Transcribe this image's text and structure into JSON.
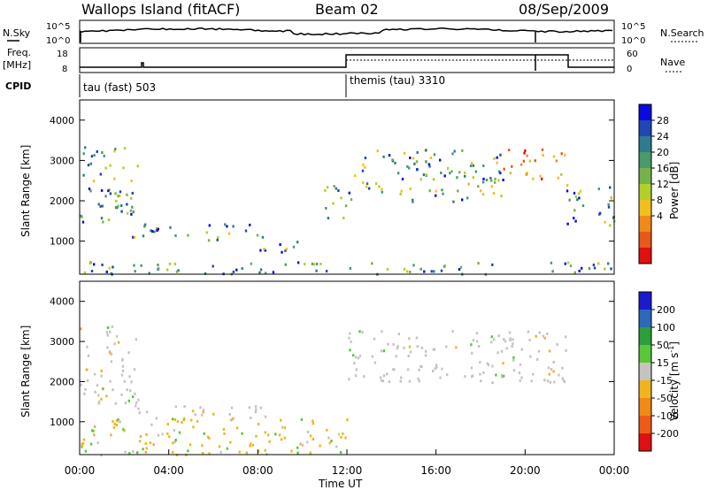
{
  "header": {
    "title": "Wallops Island (fitACF)",
    "beam": "Beam 02",
    "date": "08/Sep/2009"
  },
  "top_panels": {
    "nsky_label": "N.Sky",
    "nsky_ticks": [
      "10^5",
      "10^0"
    ],
    "nsearch_label": "N.Search",
    "nsearch_ticks": [
      "10^5",
      "10^0"
    ],
    "freq_label": "Freq.",
    "freq_unit": "[MHz]",
    "freq_ticks": [
      "18",
      "8"
    ],
    "nave_label": "Nave",
    "nave_ticks": [
      "60",
      "0"
    ],
    "cpid_label": "CPID",
    "cpid_segments": [
      {
        "name": "tau (fast)",
        "id": "503",
        "start_hour": 0
      },
      {
        "name": "themis (tau)",
        "id": "3310",
        "start_hour": 12
      }
    ]
  },
  "x_axis": {
    "label": "Time UT",
    "ticks": [
      "00:00",
      "04:00",
      "08:00",
      "12:00",
      "16:00",
      "20:00",
      "00:00"
    ],
    "range_hours": [
      0,
      24
    ]
  },
  "chart_data": [
    {
      "type": "heatmap",
      "name": "power",
      "ylabel": "Slant Range [km]",
      "ylim": [
        180,
        4500
      ],
      "yticks": [
        "4000",
        "3000",
        "2000",
        "1000"
      ],
      "colorbar": {
        "label": "Power [dB]",
        "ticks": [
          "28",
          "24",
          "20",
          "16",
          "12",
          "8",
          "4"
        ],
        "colors": [
          "#0a0ae0",
          "#1e48b4",
          "#2e7b8c",
          "#4a9a6a",
          "#74b24a",
          "#b2cf2a",
          "#f0c020",
          "#f08a18",
          "#e85818",
          "#e01010"
        ]
      },
      "echo_regions": [
        {
          "t": [
            0.0,
            2.6
          ],
          "range_km": [
            1450,
            3400
          ],
          "level": "medium-high"
        },
        {
          "t": [
            2.3,
            8.3
          ],
          "range_km": [
            1050,
            1450
          ],
          "level": "medium"
        },
        {
          "t": [
            8.0,
            10.3
          ],
          "range_km": [
            750,
            1100
          ],
          "level": "medium"
        },
        {
          "t": [
            10.9,
            12.0
          ],
          "range_km": [
            1600,
            2500
          ],
          "level": "medium"
        },
        {
          "t": [
            12.0,
            19.0
          ],
          "range_km": [
            2000,
            3300
          ],
          "level": "medium"
        },
        {
          "t": [
            19.0,
            21.8
          ],
          "range_km": [
            2500,
            3300
          ],
          "level": "high"
        },
        {
          "t": [
            21.8,
            24.0
          ],
          "range_km": [
            1400,
            2500
          ],
          "level": "medium"
        },
        {
          "t": [
            0.0,
            24.0
          ],
          "range_km": [
            200,
            500
          ],
          "level": "ground-scatter"
        }
      ]
    },
    {
      "type": "heatmap",
      "name": "velocity",
      "ylabel": "Slant Range [km]",
      "ylim": [
        180,
        4500
      ],
      "yticks": [
        "4000",
        "3000",
        "2000",
        "1000"
      ],
      "colorbar": {
        "label": "Velocity [m s-1]",
        "unit_html": [
          "Velocity [m s",
          "-1",
          "]"
        ],
        "ticks": [
          "200",
          "100",
          "50",
          "15",
          "-15",
          "-50",
          "-100",
          "-200"
        ],
        "colors": [
          "#1a1ad0",
          "#2a6ab8",
          "#2e9e3a",
          "#5ac63a",
          "#c4c4c0",
          "#f0b420",
          "#f08a18",
          "#f05a18",
          "#e01010"
        ]
      },
      "echo_regions": [
        {
          "t": [
            0.0,
            2.6
          ],
          "range_km": [
            1450,
            3400
          ],
          "class": "low-velocity-ground"
        },
        {
          "t": [
            2.3,
            8.3
          ],
          "range_km": [
            1050,
            1450
          ],
          "class": "low-velocity-ground"
        },
        {
          "t": [
            12.0,
            21.8
          ],
          "range_km": [
            2000,
            3300
          ],
          "class": "low-velocity-ground"
        },
        {
          "t": [
            0.0,
            12.0
          ],
          "range_km": [
            200,
            1100
          ],
          "class": "negative-velocity"
        }
      ]
    }
  ]
}
